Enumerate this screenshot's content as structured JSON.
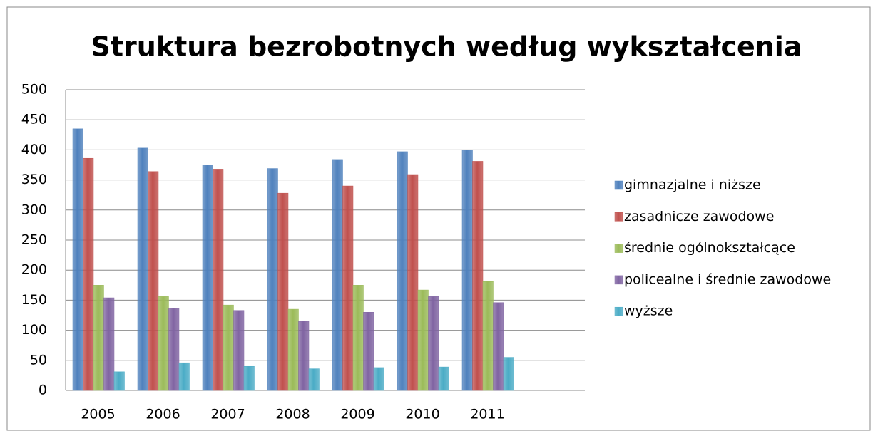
{
  "chart_data": {
    "type": "bar",
    "title": "Struktura bezrobotnych według wykształcenia",
    "categories": [
      "2005",
      "2006",
      "2007",
      "2008",
      "2009",
      "2010",
      "2011",
      null
    ],
    "series": [
      {
        "name": "gimnazjalne i niższe",
        "color": "#4f81bd",
        "values": [
          435,
          403,
          375,
          369,
          384,
          397,
          400,
          null
        ]
      },
      {
        "name": "zasadnicze zawodowe",
        "color": "#c0504d",
        "values": [
          386,
          364,
          368,
          328,
          340,
          359,
          381,
          null
        ]
      },
      {
        "name": "średnie ogólnokształcące",
        "color": "#9bbb59",
        "values": [
          175,
          156,
          142,
          135,
          175,
          167,
          181,
          null
        ]
      },
      {
        "name": "policealne i średnie zawodowe",
        "color": "#8064a2",
        "values": [
          154,
          137,
          133,
          115,
          130,
          156,
          146,
          null
        ]
      },
      {
        "name": "wyższe",
        "color": "#4bacc6",
        "values": [
          31,
          46,
          40,
          36,
          38,
          39,
          55,
          null
        ]
      }
    ],
    "ylim": [
      0,
      500
    ],
    "yticks": [
      0,
      50,
      100,
      150,
      200,
      250,
      300,
      350,
      400,
      450,
      500
    ],
    "grid": true,
    "legend": "right"
  }
}
